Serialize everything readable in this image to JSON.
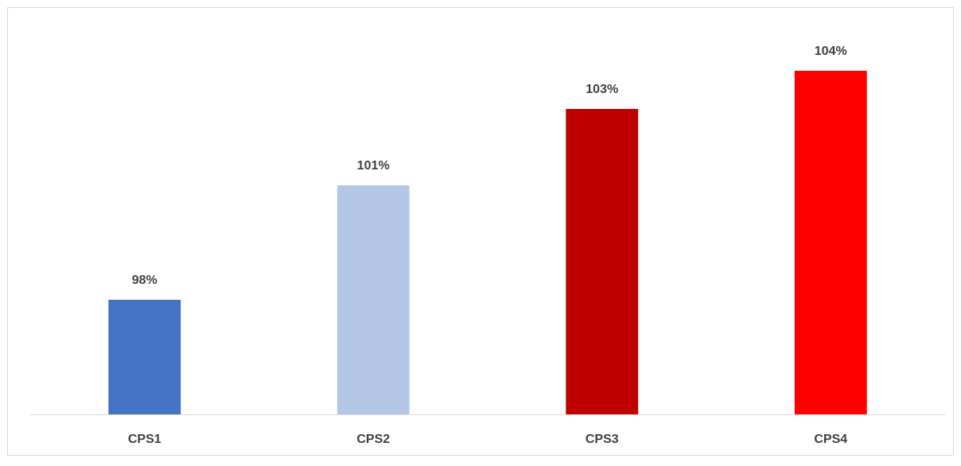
{
  "chart_data": {
    "type": "bar",
    "categories": [
      "CPS1",
      "CPS2",
      "CPS3",
      "CPS4"
    ],
    "values": [
      98,
      101,
      103,
      104
    ],
    "value_labels": [
      "98%",
      "101%",
      "103%",
      "104%"
    ],
    "colors": [
      "#4472c4",
      "#b4c7e7",
      "#c00000",
      "#ff0000"
    ],
    "ylim": [
      95,
      105
    ]
  }
}
